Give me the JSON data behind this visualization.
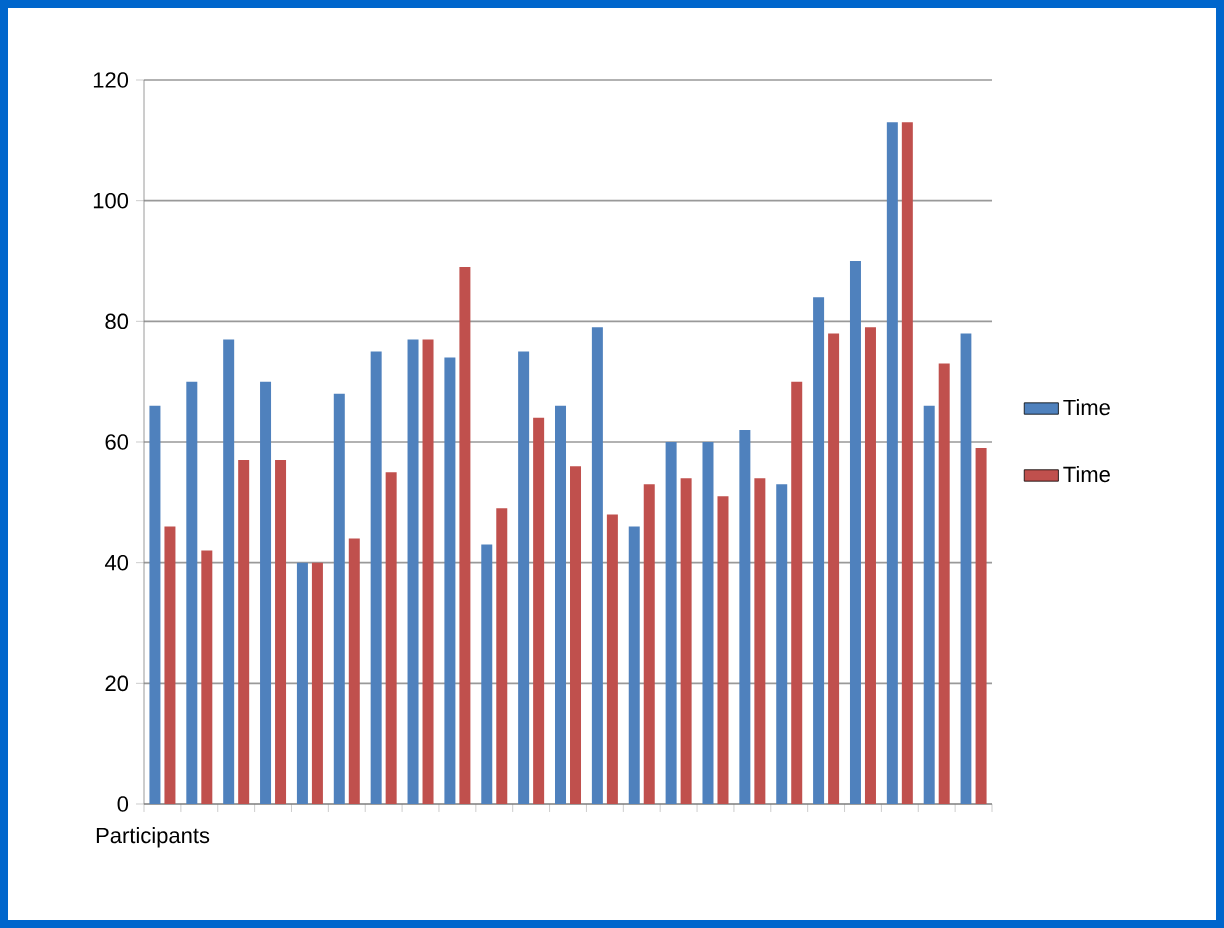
{
  "chart_data": {
    "type": "bar",
    "xlabel": "Participants",
    "categories": [
      null,
      null,
      null,
      null,
      null,
      null,
      null,
      null,
      null,
      null,
      null,
      null,
      null,
      null,
      null,
      null,
      null,
      null,
      null,
      null,
      null,
      null,
      null
    ],
    "series": [
      {
        "name": "Time",
        "color": "#4f81bd",
        "values": [
          66,
          70,
          77,
          70,
          40,
          68,
          75,
          77,
          74,
          43,
          75,
          66,
          79,
          46,
          60,
          60,
          62,
          53,
          84,
          90,
          113,
          66,
          78
        ]
      },
      {
        "name": "Time",
        "color": "#c0504d",
        "values": [
          46,
          42,
          57,
          57,
          40,
          44,
          55,
          77,
          89,
          49,
          64,
          56,
          48,
          53,
          54,
          51,
          54,
          70,
          78,
          79,
          113,
          73,
          59
        ]
      }
    ],
    "ylim": [
      0,
      120
    ],
    "yticks": [
      0,
      20,
      40,
      60,
      80,
      100,
      120
    ],
    "grid": "y",
    "legend": "right"
  }
}
